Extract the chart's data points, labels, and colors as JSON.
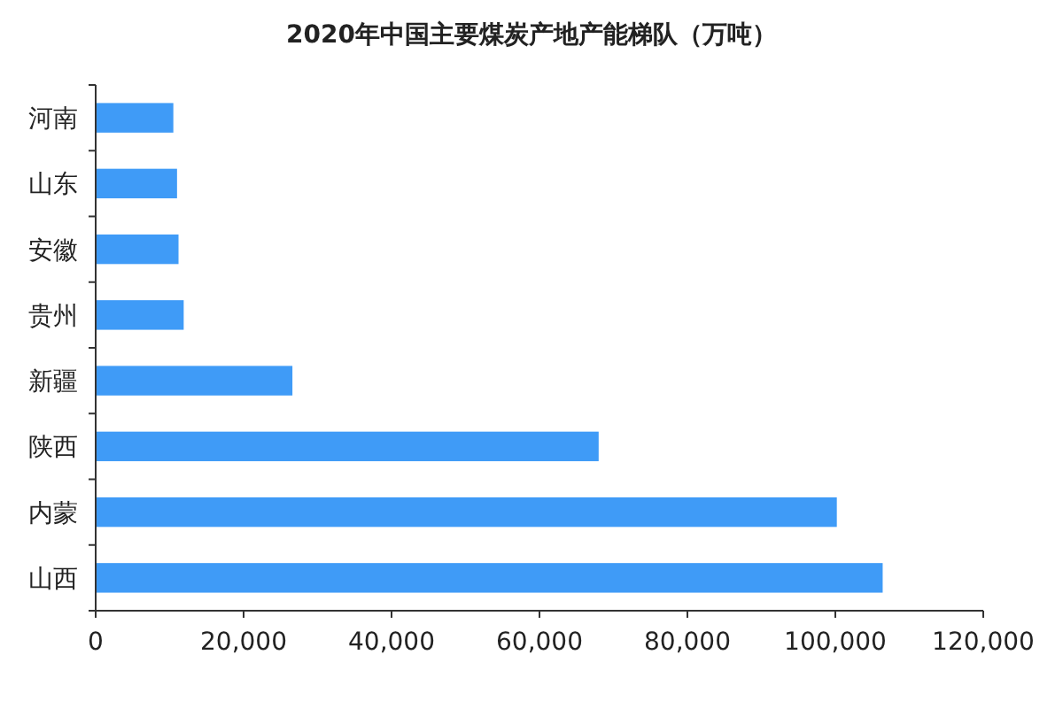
{
  "chart_data": {
    "type": "bar",
    "orientation": "horizontal",
    "title": "2020年中国主要煤炭产地产能梯队（万吨）",
    "categories": [
      "河南",
      "山东",
      "安徽",
      "贵州",
      "新疆",
      "陕西",
      "内蒙",
      "山西"
    ],
    "values": [
      10500,
      11000,
      11200,
      11900,
      26600,
      68000,
      100200,
      106400
    ],
    "color": "#3f9bf7",
    "xlim": [
      0,
      120000
    ],
    "xticks": [
      {
        "value": 0,
        "label": "0"
      },
      {
        "value": 20000,
        "label": "20,000"
      },
      {
        "value": 40000,
        "label": "40,000"
      },
      {
        "value": 60000,
        "label": "60,000"
      },
      {
        "value": 80000,
        "label": "80,000"
      },
      {
        "value": 100000,
        "label": "100,000"
      },
      {
        "value": 120000,
        "label": "120,000"
      }
    ],
    "grid": false
  }
}
